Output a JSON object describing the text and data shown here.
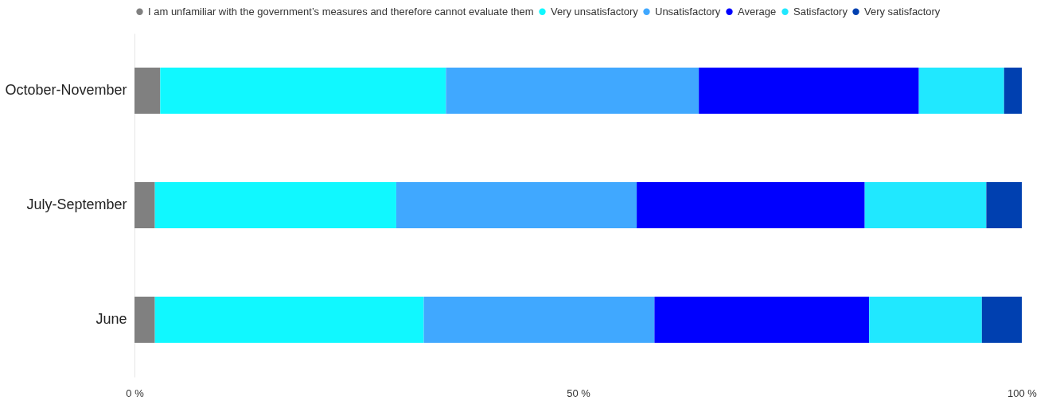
{
  "chart_data": {
    "type": "bar",
    "orientation": "horizontal",
    "stacked": true,
    "categories": [
      "October-November",
      "July-September",
      "June"
    ],
    "series": [
      {
        "name": "I am unfamiliar with the government’s measures and therefore cannot evaluate them",
        "color": "#808080",
        "values": [
          2.9,
          2.3,
          2.3
        ]
      },
      {
        "name": "Very unsatisfactory",
        "color": "#10f8ff",
        "values": [
          32.2,
          27.2,
          30.3
        ]
      },
      {
        "name": "Unsatisfactory",
        "color": "#40a8ff",
        "values": [
          28.5,
          27.1,
          26.0
        ]
      },
      {
        "name": "Average",
        "color": "#0000ff",
        "values": [
          24.8,
          25.7,
          24.2
        ]
      },
      {
        "name": "Satisfactory",
        "color": "#20e8ff",
        "values": [
          9.6,
          13.7,
          12.7
        ]
      },
      {
        "name": "Very satisfactory",
        "color": "#0040b0",
        "values": [
          2.0,
          4.0,
          4.5
        ]
      }
    ],
    "xlim": [
      0,
      100
    ],
    "xticks": [
      {
        "value": 0,
        "label": "0 %"
      },
      {
        "value": 50,
        "label": "50 %"
      },
      {
        "value": 100,
        "label": "100 %"
      }
    ],
    "grid": false,
    "legend": "top"
  }
}
